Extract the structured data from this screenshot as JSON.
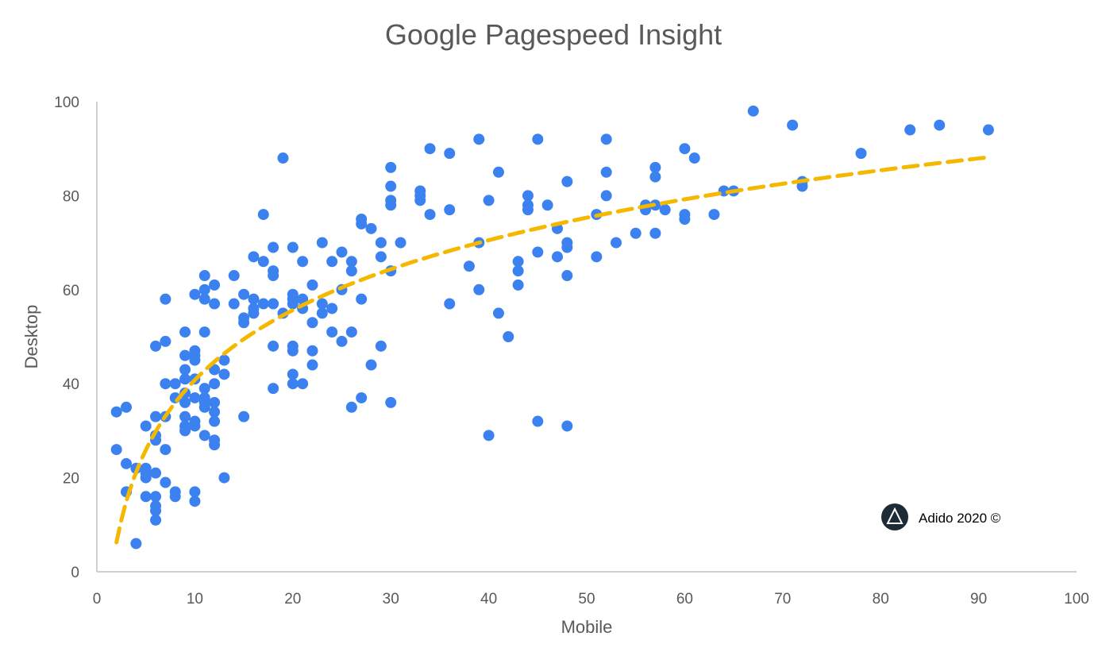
{
  "chart_data": {
    "type": "scatter",
    "title": "Google Pagespeed Insight",
    "xlabel": "Mobile",
    "ylabel": "Desktop",
    "xlim": [
      0,
      100
    ],
    "ylim": [
      0,
      100
    ],
    "xticks": [
      0,
      10,
      20,
      30,
      40,
      50,
      60,
      70,
      80,
      90,
      100
    ],
    "yticks": [
      0,
      20,
      40,
      60,
      80,
      100
    ],
    "grid": false,
    "legend": "none",
    "point_color": "#3b82f0",
    "trend_color": "#f5b800",
    "trendline": {
      "type": "logarithmic",
      "x_from": 2,
      "x_to": 91
    },
    "points": [
      [
        2,
        34
      ],
      [
        3,
        35
      ],
      [
        2,
        26
      ],
      [
        3,
        23
      ],
      [
        4,
        22
      ],
      [
        5,
        22
      ],
      [
        3,
        17
      ],
      [
        4,
        6
      ],
      [
        5,
        21
      ],
      [
        5,
        20
      ],
      [
        6,
        21
      ],
      [
        5,
        16
      ],
      [
        6,
        16
      ],
      [
        6,
        14
      ],
      [
        6,
        13
      ],
      [
        6,
        11
      ],
      [
        5,
        31
      ],
      [
        6,
        29
      ],
      [
        6,
        28
      ],
      [
        6,
        33
      ],
      [
        7,
        33
      ],
      [
        6,
        48
      ],
      [
        7,
        49
      ],
      [
        7,
        58
      ],
      [
        7,
        40
      ],
      [
        7,
        26
      ],
      [
        7,
        19
      ],
      [
        8,
        40
      ],
      [
        8,
        37
      ],
      [
        8,
        17
      ],
      [
        8,
        16
      ],
      [
        9,
        51
      ],
      [
        9,
        46
      ],
      [
        9,
        43
      ],
      [
        9,
        41
      ],
      [
        9,
        38
      ],
      [
        9,
        36
      ],
      [
        9,
        33
      ],
      [
        9,
        31
      ],
      [
        9,
        30
      ],
      [
        10,
        59
      ],
      [
        10,
        47
      ],
      [
        10,
        46
      ],
      [
        10,
        45
      ],
      [
        10,
        41
      ],
      [
        10,
        37
      ],
      [
        10,
        32
      ],
      [
        10,
        31
      ],
      [
        10,
        17
      ],
      [
        10,
        15
      ],
      [
        11,
        63
      ],
      [
        11,
        60
      ],
      [
        11,
        58
      ],
      [
        11,
        51
      ],
      [
        11,
        39
      ],
      [
        11,
        37
      ],
      [
        11,
        36
      ],
      [
        11,
        35
      ],
      [
        11,
        29
      ],
      [
        12,
        61
      ],
      [
        12,
        57
      ],
      [
        12,
        43
      ],
      [
        12,
        40
      ],
      [
        12,
        36
      ],
      [
        12,
        34
      ],
      [
        12,
        32
      ],
      [
        12,
        28
      ],
      [
        12,
        27
      ],
      [
        13,
        45
      ],
      [
        13,
        42
      ],
      [
        13,
        20
      ],
      [
        14,
        63
      ],
      [
        14,
        57
      ],
      [
        15,
        59
      ],
      [
        15,
        54
      ],
      [
        15,
        53
      ],
      [
        15,
        33
      ],
      [
        16,
        67
      ],
      [
        16,
        58
      ],
      [
        16,
        56
      ],
      [
        16,
        55
      ],
      [
        17,
        76
      ],
      [
        17,
        66
      ],
      [
        17,
        57
      ],
      [
        18,
        69
      ],
      [
        18,
        64
      ],
      [
        18,
        63
      ],
      [
        18,
        57
      ],
      [
        18,
        48
      ],
      [
        18,
        39
      ],
      [
        19,
        88
      ],
      [
        19,
        55
      ],
      [
        20,
        69
      ],
      [
        20,
        59
      ],
      [
        20,
        58
      ],
      [
        20,
        57
      ],
      [
        20,
        48
      ],
      [
        20,
        47
      ],
      [
        20,
        42
      ],
      [
        20,
        40
      ],
      [
        21,
        66
      ],
      [
        21,
        58
      ],
      [
        21,
        56
      ],
      [
        21,
        40
      ],
      [
        22,
        61
      ],
      [
        22,
        53
      ],
      [
        22,
        47
      ],
      [
        22,
        44
      ],
      [
        23,
        70
      ],
      [
        23,
        57
      ],
      [
        23,
        55
      ],
      [
        24,
        66
      ],
      [
        24,
        56
      ],
      [
        24,
        51
      ],
      [
        25,
        68
      ],
      [
        25,
        60
      ],
      [
        25,
        49
      ],
      [
        26,
        66
      ],
      [
        26,
        64
      ],
      [
        26,
        51
      ],
      [
        26,
        35
      ],
      [
        27,
        75
      ],
      [
        27,
        74
      ],
      [
        27,
        58
      ],
      [
        27,
        37
      ],
      [
        28,
        73
      ],
      [
        28,
        44
      ],
      [
        29,
        70
      ],
      [
        29,
        67
      ],
      [
        29,
        48
      ],
      [
        30,
        86
      ],
      [
        30,
        82
      ],
      [
        30,
        79
      ],
      [
        30,
        78
      ],
      [
        30,
        64
      ],
      [
        30,
        36
      ],
      [
        31,
        70
      ],
      [
        33,
        81
      ],
      [
        33,
        80
      ],
      [
        33,
        79
      ],
      [
        34,
        90
      ],
      [
        34,
        76
      ],
      [
        36,
        89
      ],
      [
        36,
        77
      ],
      [
        36,
        57
      ],
      [
        38,
        65
      ],
      [
        39,
        92
      ],
      [
        39,
        70
      ],
      [
        39,
        60
      ],
      [
        40,
        79
      ],
      [
        40,
        29
      ],
      [
        41,
        85
      ],
      [
        41,
        55
      ],
      [
        42,
        50
      ],
      [
        43,
        66
      ],
      [
        43,
        64
      ],
      [
        43,
        61
      ],
      [
        44,
        80
      ],
      [
        44,
        78
      ],
      [
        44,
        77
      ],
      [
        45,
        92
      ],
      [
        45,
        68
      ],
      [
        45,
        32
      ],
      [
        46,
        78
      ],
      [
        47,
        73
      ],
      [
        47,
        67
      ],
      [
        48,
        83
      ],
      [
        48,
        70
      ],
      [
        48,
        69
      ],
      [
        48,
        63
      ],
      [
        48,
        31
      ],
      [
        51,
        76
      ],
      [
        51,
        67
      ],
      [
        52,
        92
      ],
      [
        52,
        85
      ],
      [
        52,
        80
      ],
      [
        53,
        70
      ],
      [
        55,
        72
      ],
      [
        56,
        78
      ],
      [
        56,
        77
      ],
      [
        57,
        86
      ],
      [
        57,
        84
      ],
      [
        57,
        78
      ],
      [
        57,
        72
      ],
      [
        58,
        77
      ],
      [
        60,
        90
      ],
      [
        60,
        76
      ],
      [
        60,
        75
      ],
      [
        61,
        88
      ],
      [
        63,
        76
      ],
      [
        64,
        81
      ],
      [
        65,
        81
      ],
      [
        67,
        98
      ],
      [
        71,
        95
      ],
      [
        72,
        83
      ],
      [
        72,
        82
      ],
      [
        78,
        89
      ],
      [
        83,
        94
      ],
      [
        86,
        95
      ],
      [
        91,
        94
      ]
    ]
  },
  "credit": {
    "text": "Adido 2020 ©",
    "logo_name": "adido-logo",
    "logo_bg": "#1e2b36"
  }
}
